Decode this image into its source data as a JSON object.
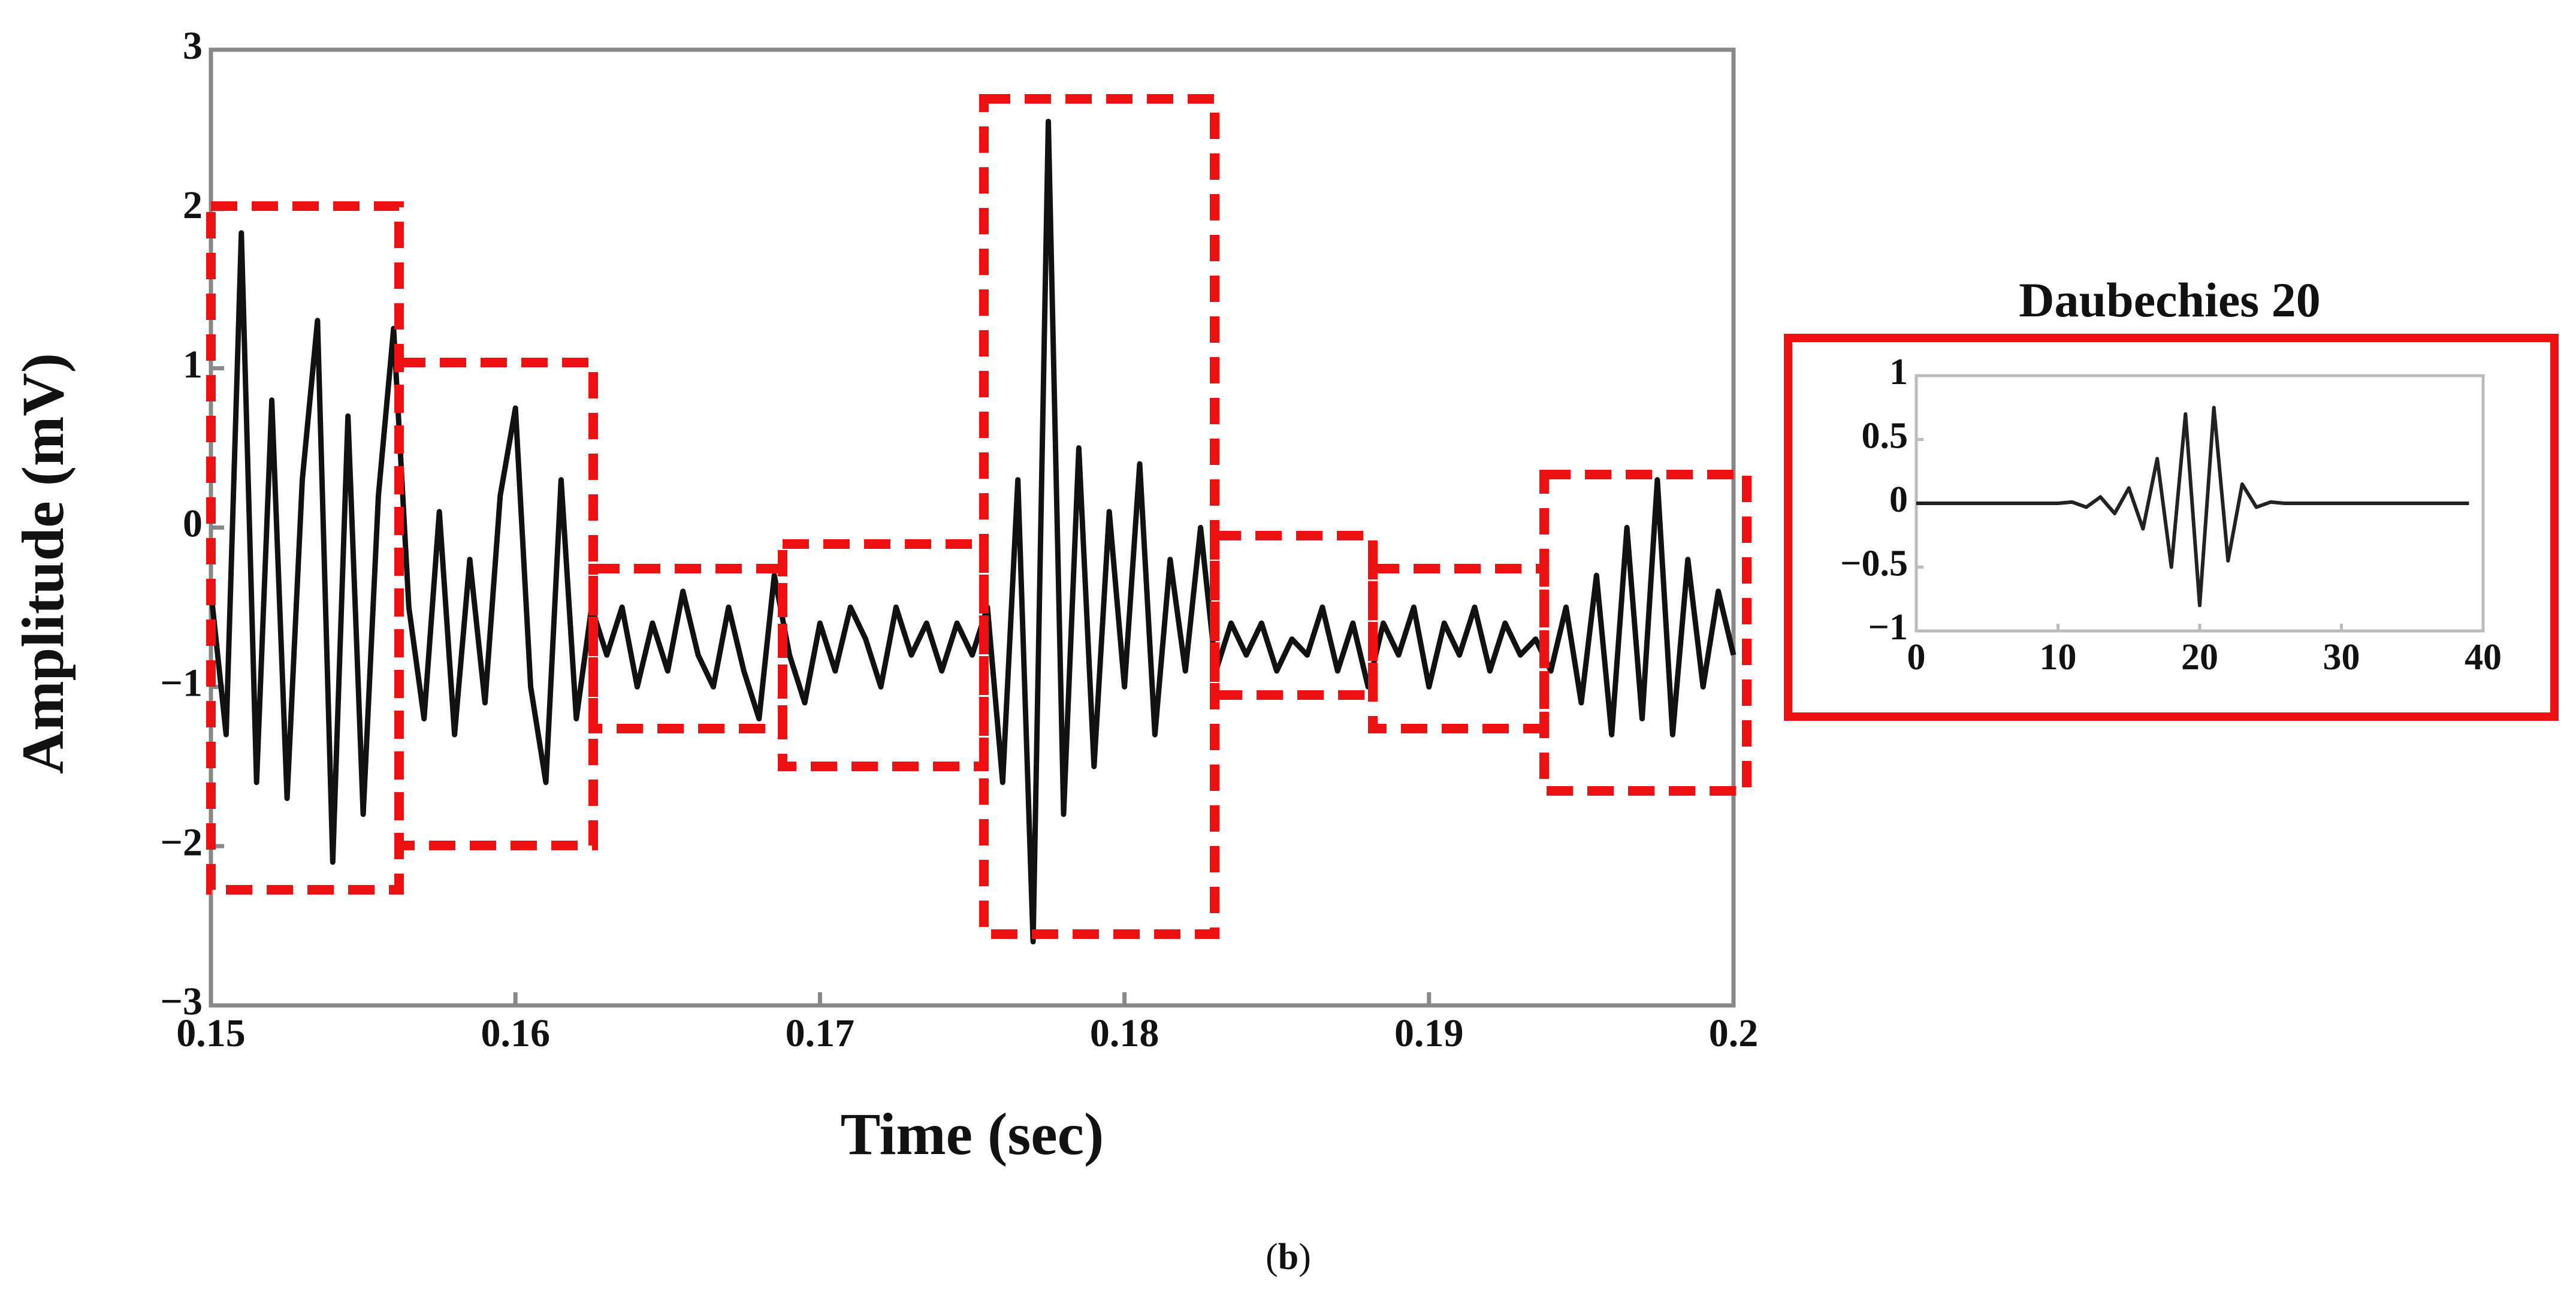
{
  "chart_data": [
    {
      "type": "line",
      "xlabel": "Time (sec)",
      "ylabel": "Amplitude (mV)",
      "x": [
        0.15,
        0.1505,
        0.151,
        0.1515,
        0.152,
        0.1525,
        0.153,
        0.1535,
        0.154,
        0.1545,
        0.155,
        0.1555,
        0.156,
        0.1565,
        0.157,
        0.1575,
        0.158,
        0.1585,
        0.159,
        0.1595,
        0.16,
        0.1605,
        0.161,
        0.1615,
        0.162,
        0.1625,
        0.163,
        0.1635,
        0.164,
        0.1645,
        0.165,
        0.1655,
        0.166,
        0.1665,
        0.167,
        0.1675,
        0.168,
        0.1685,
        0.169,
        0.1695,
        0.17,
        0.1705,
        0.171,
        0.1715,
        0.172,
        0.1725,
        0.173,
        0.1735,
        0.174,
        0.1745,
        0.175,
        0.1755,
        0.176,
        0.1765,
        0.177,
        0.1775,
        0.178,
        0.1785,
        0.179,
        0.1795,
        0.18,
        0.1805,
        0.181,
        0.1815,
        0.182,
        0.1825,
        0.183,
        0.1835,
        0.184,
        0.1845,
        0.185,
        0.1855,
        0.186,
        0.1865,
        0.187,
        0.1875,
        0.188,
        0.1885,
        0.189,
        0.1895,
        0.19,
        0.1905,
        0.191,
        0.1915,
        0.192,
        0.1925,
        0.193,
        0.1935,
        0.194,
        0.1945,
        0.195,
        0.1955,
        0.196,
        0.1965,
        0.197,
        0.1975,
        0.198,
        0.1985,
        0.199,
        0.1995,
        0.2
      ],
      "series": [
        {
          "color": "#111111",
          "values": [
            -0.4,
            -1.3,
            1.85,
            -1.6,
            0.8,
            -1.7,
            0.3,
            1.3,
            -2.1,
            0.7,
            -1.8,
            0.2,
            1.25,
            -0.5,
            -1.2,
            0.1,
            -1.3,
            -0.2,
            -1.1,
            0.2,
            0.75,
            -1.0,
            -1.6,
            0.3,
            -1.2,
            -0.5,
            -0.8,
            -0.5,
            -1.0,
            -0.6,
            -0.9,
            -0.4,
            -0.8,
            -1.0,
            -0.5,
            -0.9,
            -1.2,
            -0.3,
            -0.8,
            -1.1,
            -0.6,
            -0.9,
            -0.5,
            -0.7,
            -1.0,
            -0.5,
            -0.8,
            -0.6,
            -0.9,
            -0.6,
            -0.8,
            -0.5,
            -1.6,
            0.3,
            -2.6,
            2.55,
            -1.8,
            0.5,
            -1.5,
            0.1,
            -1.0,
            0.4,
            -1.3,
            -0.2,
            -0.9,
            0.0,
            -0.9,
            -0.6,
            -0.8,
            -0.6,
            -0.9,
            -0.7,
            -0.8,
            -0.5,
            -0.9,
            -0.6,
            -1.0,
            -0.6,
            -0.8,
            -0.5,
            -1.0,
            -0.6,
            -0.8,
            -0.5,
            -0.9,
            -0.6,
            -0.8,
            -0.7,
            -0.9,
            -0.5,
            -1.1,
            -0.3,
            -1.3,
            0.0,
            -1.2,
            0.3,
            -1.3,
            -0.2,
            -1.0,
            -0.4,
            -0.8
          ]
        }
      ],
      "xlim": [
        0.15,
        0.2
      ],
      "xticks": [
        0.15,
        0.16,
        0.17,
        0.18,
        0.19,
        0.2
      ],
      "ylim": [
        {
          "value": -3,
          "label": "−3"
        },
        3
      ],
      "yticks": [
        {
          "value": -3,
          "label": "−3"
        },
        {
          "value": -2,
          "label": "−2"
        },
        {
          "value": -1,
          "label": "−1"
        },
        0,
        1,
        2,
        3
      ]
    },
    {
      "type": "line",
      "title": "Daubechies 20",
      "x": [
        0,
        1,
        2,
        3,
        4,
        5,
        6,
        7,
        8,
        9,
        10,
        11,
        12,
        13,
        14,
        15,
        16,
        17,
        18,
        19,
        20,
        21,
        22,
        23,
        24,
        25,
        26,
        27,
        28,
        29,
        30,
        31,
        32,
        33,
        34,
        35,
        36,
        37,
        38,
        39
      ],
      "series": [
        {
          "color": "#222222",
          "values": [
            0,
            0,
            0,
            0,
            0,
            0,
            0,
            0,
            0,
            0,
            0,
            0.01,
            -0.03,
            0.05,
            -0.08,
            0.12,
            -0.2,
            0.35,
            -0.5,
            0.7,
            -0.8,
            0.75,
            -0.45,
            0.15,
            -0.03,
            0.01,
            0,
            0,
            0,
            0,
            0,
            0,
            0,
            0,
            0,
            0,
            0,
            0,
            0,
            0
          ]
        }
      ],
      "xlim": [
        0,
        40
      ],
      "xticks": [
        0,
        10,
        20,
        30,
        40
      ],
      "ylim": [
        {
          "value": -1,
          "label": "−1"
        },
        1
      ],
      "yticks": [
        {
          "value": -1,
          "label": "−1"
        },
        {
          "value": -0.5,
          "label": "−0.5"
        },
        0,
        0.5,
        1
      ]
    }
  ]
}
